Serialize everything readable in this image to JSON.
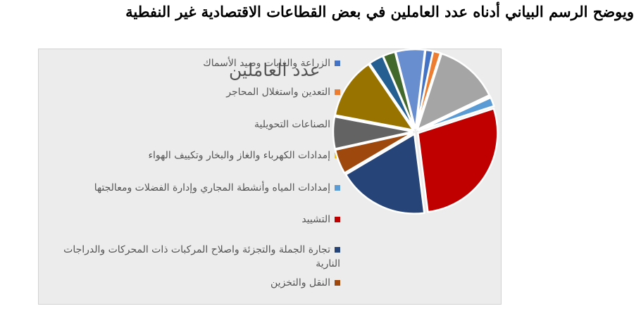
{
  "heading": "ويوضح الرسم البياني أدناه عدد العاملين في بعض القطاعات الاقتصادية غير النفطية",
  "chart_data": {
    "type": "pie",
    "title": "عدد العاملين",
    "legend_position": "left",
    "series": [
      {
        "name": "الزراعة والغابات وصيد الأسماك",
        "value": 1.5,
        "color": "#4472c4"
      },
      {
        "name": "التعدين واستغلال المحاجر",
        "value": 1.5,
        "color": "#ed7d31"
      },
      {
        "name": "الصناعات التحويلية",
        "value": 13.0,
        "color": "#a5a5a5"
      },
      {
        "name": "إمدادات الكهرباء والغاز والبخار وتكييف الهواء",
        "value": 0.3,
        "color": "#ffc000"
      },
      {
        "name": "إمدادات المياه وأنشطة المجاري وإدارة الفضلات ومعالجتها",
        "value": 1.8,
        "color": "#5b9bd5"
      },
      {
        "name": "التشييد",
        "value": 28.0,
        "color": "#c00000"
      },
      {
        "name": "تجارة الجملة والتجزئة واصلاح المركبات ذات المحركات والدراجات النارية",
        "value": 18.5,
        "color": "#264478"
      },
      {
        "name": "النقل والتخزين",
        "value": 5.0,
        "color": "#9e480e"
      },
      {
        "name": "",
        "value": 6.5,
        "color": "#636363"
      },
      {
        "name": "",
        "value": 12.5,
        "color": "#997300"
      },
      {
        "name": "",
        "value": 3.0,
        "color": "#255e91"
      },
      {
        "name": "",
        "value": 2.5,
        "color": "#43682b"
      },
      {
        "name": "",
        "value": 5.9,
        "color": "#698ed0"
      }
    ]
  }
}
